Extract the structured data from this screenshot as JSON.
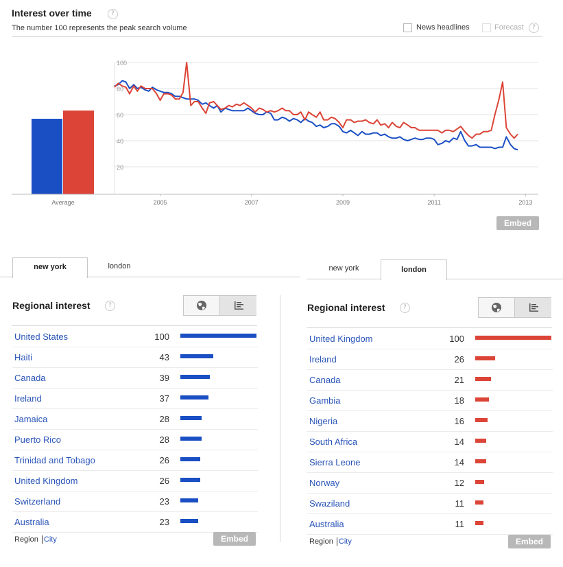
{
  "header": {
    "title": "Interest over time",
    "subtitle": "The number 100 represents the peak search volume",
    "news_label": "News headlines",
    "forecast_label": "Forecast",
    "help_glyph": "?"
  },
  "colors": {
    "series_a": "#1a4fc4",
    "series_b": "#dc4437",
    "link": "#2a55b8",
    "embed": "#b8b8b8"
  },
  "chart_data": {
    "type": "line",
    "ylim": [
      0,
      100
    ],
    "yticks": [
      "100",
      "80",
      "60",
      "40",
      "20"
    ],
    "xticks": [
      "2005",
      "2007",
      "2009",
      "2011",
      "2013"
    ],
    "x_range": [
      2004.0,
      2013.1
    ],
    "averages": {
      "label": "Average",
      "values": [
        55,
        61
      ]
    },
    "series": [
      {
        "color": "#1a4fc4",
        "points": [
          [
            2004.0,
            82
          ],
          [
            2004.08,
            83
          ],
          [
            2004.17,
            86
          ],
          [
            2004.25,
            85
          ],
          [
            2004.33,
            80
          ],
          [
            2004.42,
            83
          ],
          [
            2004.5,
            80
          ],
          [
            2004.58,
            81
          ],
          [
            2004.67,
            79
          ],
          [
            2004.75,
            78
          ],
          [
            2004.83,
            81
          ],
          [
            2004.92,
            79
          ],
          [
            2005.0,
            78
          ],
          [
            2005.08,
            77
          ],
          [
            2005.17,
            77
          ],
          [
            2005.25,
            76
          ],
          [
            2005.33,
            74
          ],
          [
            2005.42,
            74
          ],
          [
            2005.5,
            73
          ],
          [
            2005.58,
            72
          ],
          [
            2005.67,
            72
          ],
          [
            2005.75,
            72
          ],
          [
            2005.83,
            71
          ],
          [
            2005.92,
            68
          ],
          [
            2006.0,
            69
          ],
          [
            2006.08,
            67
          ],
          [
            2006.17,
            65
          ],
          [
            2006.25,
            67
          ],
          [
            2006.33,
            62
          ],
          [
            2006.42,
            65
          ],
          [
            2006.5,
            64
          ],
          [
            2006.58,
            63
          ],
          [
            2006.67,
            63
          ],
          [
            2006.75,
            63
          ],
          [
            2006.83,
            63
          ],
          [
            2006.92,
            65
          ],
          [
            2007.0,
            63
          ],
          [
            2007.08,
            61
          ],
          [
            2007.17,
            60
          ],
          [
            2007.25,
            60
          ],
          [
            2007.33,
            62
          ],
          [
            2007.42,
            61
          ],
          [
            2007.5,
            56
          ],
          [
            2007.58,
            56
          ],
          [
            2007.67,
            58
          ],
          [
            2007.75,
            57
          ],
          [
            2007.83,
            55
          ],
          [
            2007.92,
            57
          ],
          [
            2008.0,
            56
          ],
          [
            2008.08,
            54
          ],
          [
            2008.17,
            57
          ],
          [
            2008.25,
            55
          ],
          [
            2008.33,
            54
          ],
          [
            2008.42,
            51
          ],
          [
            2008.5,
            52
          ],
          [
            2008.58,
            50
          ],
          [
            2008.67,
            51
          ],
          [
            2008.75,
            53
          ],
          [
            2008.83,
            53
          ],
          [
            2008.92,
            51
          ],
          [
            2009.0,
            47
          ],
          [
            2009.08,
            46
          ],
          [
            2009.17,
            48
          ],
          [
            2009.25,
            46
          ],
          [
            2009.33,
            44
          ],
          [
            2009.42,
            47
          ],
          [
            2009.5,
            45
          ],
          [
            2009.58,
            45
          ],
          [
            2009.67,
            46
          ],
          [
            2009.75,
            46
          ],
          [
            2009.83,
            44
          ],
          [
            2009.92,
            45
          ],
          [
            2010.0,
            43
          ],
          [
            2010.08,
            42
          ],
          [
            2010.17,
            42
          ],
          [
            2010.25,
            43
          ],
          [
            2010.33,
            41
          ],
          [
            2010.42,
            40
          ],
          [
            2010.5,
            41
          ],
          [
            2010.58,
            42
          ],
          [
            2010.67,
            41
          ],
          [
            2010.75,
            41
          ],
          [
            2010.83,
            42
          ],
          [
            2010.92,
            42
          ],
          [
            2011.0,
            41
          ],
          [
            2011.08,
            37
          ],
          [
            2011.17,
            38
          ],
          [
            2011.25,
            40
          ],
          [
            2011.33,
            39
          ],
          [
            2011.42,
            42
          ],
          [
            2011.5,
            41
          ],
          [
            2011.58,
            47
          ],
          [
            2011.67,
            40
          ],
          [
            2011.75,
            36
          ],
          [
            2011.83,
            36
          ],
          [
            2011.92,
            37
          ],
          [
            2012.0,
            35
          ],
          [
            2012.08,
            35
          ],
          [
            2012.17,
            35
          ],
          [
            2012.25,
            35
          ],
          [
            2012.33,
            34
          ],
          [
            2012.42,
            35
          ],
          [
            2012.5,
            35
          ],
          [
            2012.58,
            43
          ],
          [
            2012.67,
            37
          ],
          [
            2012.75,
            34
          ],
          [
            2012.83,
            33
          ]
        ]
      },
      {
        "color": "#dc4437",
        "points": [
          [
            2004.0,
            81
          ],
          [
            2004.08,
            84
          ],
          [
            2004.17,
            82
          ],
          [
            2004.25,
            81
          ],
          [
            2004.33,
            76
          ],
          [
            2004.42,
            82
          ],
          [
            2004.5,
            78
          ],
          [
            2004.58,
            82
          ],
          [
            2004.67,
            80
          ],
          [
            2004.75,
            80
          ],
          [
            2004.83,
            80
          ],
          [
            2004.92,
            76
          ],
          [
            2005.0,
            71
          ],
          [
            2005.08,
            76
          ],
          [
            2005.17,
            76
          ],
          [
            2005.25,
            75
          ],
          [
            2005.33,
            72
          ],
          [
            2005.42,
            72
          ],
          [
            2005.5,
            77
          ],
          [
            2005.58,
            100
          ],
          [
            2005.67,
            67
          ],
          [
            2005.75,
            70
          ],
          [
            2005.83,
            70
          ],
          [
            2005.92,
            65
          ],
          [
            2006.0,
            61
          ],
          [
            2006.08,
            69
          ],
          [
            2006.17,
            70
          ],
          [
            2006.25,
            67
          ],
          [
            2006.33,
            64
          ],
          [
            2006.42,
            65
          ],
          [
            2006.5,
            67
          ],
          [
            2006.58,
            66
          ],
          [
            2006.67,
            68
          ],
          [
            2006.75,
            67
          ],
          [
            2006.83,
            69
          ],
          [
            2006.92,
            67
          ],
          [
            2007.0,
            65
          ],
          [
            2007.08,
            62
          ],
          [
            2007.17,
            65
          ],
          [
            2007.25,
            64
          ],
          [
            2007.33,
            62
          ],
          [
            2007.42,
            63
          ],
          [
            2007.5,
            62
          ],
          [
            2007.58,
            63
          ],
          [
            2007.67,
            65
          ],
          [
            2007.75,
            63
          ],
          [
            2007.83,
            63
          ],
          [
            2007.92,
            60
          ],
          [
            2008.0,
            60
          ],
          [
            2008.08,
            62
          ],
          [
            2008.17,
            56
          ],
          [
            2008.25,
            62
          ],
          [
            2008.33,
            60
          ],
          [
            2008.42,
            58
          ],
          [
            2008.5,
            62
          ],
          [
            2008.58,
            56
          ],
          [
            2008.67,
            56
          ],
          [
            2008.75,
            58
          ],
          [
            2008.83,
            57
          ],
          [
            2008.92,
            54
          ],
          [
            2009.0,
            50
          ],
          [
            2009.08,
            56
          ],
          [
            2009.17,
            56
          ],
          [
            2009.25,
            54
          ],
          [
            2009.33,
            55
          ],
          [
            2009.42,
            55
          ],
          [
            2009.5,
            56
          ],
          [
            2009.58,
            54
          ],
          [
            2009.67,
            53
          ],
          [
            2009.75,
            56
          ],
          [
            2009.83,
            52
          ],
          [
            2009.92,
            53
          ],
          [
            2010.0,
            50
          ],
          [
            2010.08,
            54
          ],
          [
            2010.17,
            51
          ],
          [
            2010.25,
            50
          ],
          [
            2010.33,
            54
          ],
          [
            2010.42,
            52
          ],
          [
            2010.5,
            50
          ],
          [
            2010.58,
            50
          ],
          [
            2010.67,
            48
          ],
          [
            2010.75,
            48
          ],
          [
            2010.83,
            48
          ],
          [
            2010.92,
            48
          ],
          [
            2011.0,
            48
          ],
          [
            2011.08,
            48
          ],
          [
            2011.17,
            46
          ],
          [
            2011.25,
            48
          ],
          [
            2011.33,
            48
          ],
          [
            2011.42,
            47
          ],
          [
            2011.5,
            49
          ],
          [
            2011.58,
            51
          ],
          [
            2011.67,
            47
          ],
          [
            2011.75,
            44
          ],
          [
            2011.83,
            42
          ],
          [
            2011.92,
            45
          ],
          [
            2012.0,
            45
          ],
          [
            2012.08,
            47
          ],
          [
            2012.17,
            47
          ],
          [
            2012.25,
            48
          ],
          [
            2012.33,
            60
          ],
          [
            2012.42,
            72
          ],
          [
            2012.5,
            85
          ],
          [
            2012.58,
            50
          ],
          [
            2012.67,
            45
          ],
          [
            2012.75,
            42
          ],
          [
            2012.83,
            45
          ]
        ]
      }
    ]
  },
  "embed_label": "Embed",
  "tabs_left": {
    "active": "new york",
    "other": "london"
  },
  "tabs_right": {
    "other": "new york",
    "active": "london"
  },
  "panel_left": {
    "title": "Regional interest",
    "bar_color": "#1a4fc4",
    "rows": [
      {
        "name": "United States",
        "value": 100
      },
      {
        "name": "Haiti",
        "value": 43
      },
      {
        "name": "Canada",
        "value": 39
      },
      {
        "name": "Ireland",
        "value": 37
      },
      {
        "name": "Jamaica",
        "value": 28
      },
      {
        "name": "Puerto Rico",
        "value": 28
      },
      {
        "name": "Trinidad and Tobago",
        "value": 26
      },
      {
        "name": "United Kingdom",
        "value": 26
      },
      {
        "name": "Switzerland",
        "value": 23
      },
      {
        "name": "Australia",
        "value": 23
      }
    ],
    "footer": {
      "region": "Region",
      "city": "City",
      "embed": "Embed"
    }
  },
  "panel_right": {
    "title": "Regional interest",
    "bar_color": "#dc4437",
    "rows": [
      {
        "name": "United Kingdom",
        "value": 100
      },
      {
        "name": "Ireland",
        "value": 26
      },
      {
        "name": "Canada",
        "value": 21
      },
      {
        "name": "Gambia",
        "value": 18
      },
      {
        "name": "Nigeria",
        "value": 16
      },
      {
        "name": "South Africa",
        "value": 14
      },
      {
        "name": "Sierra Leone",
        "value": 14
      },
      {
        "name": "Norway",
        "value": 12
      },
      {
        "name": "Swaziland",
        "value": 11
      },
      {
        "name": "Australia",
        "value": 11
      }
    ],
    "footer": {
      "region": "Region",
      "city": "City",
      "embed": "Embed"
    }
  }
}
